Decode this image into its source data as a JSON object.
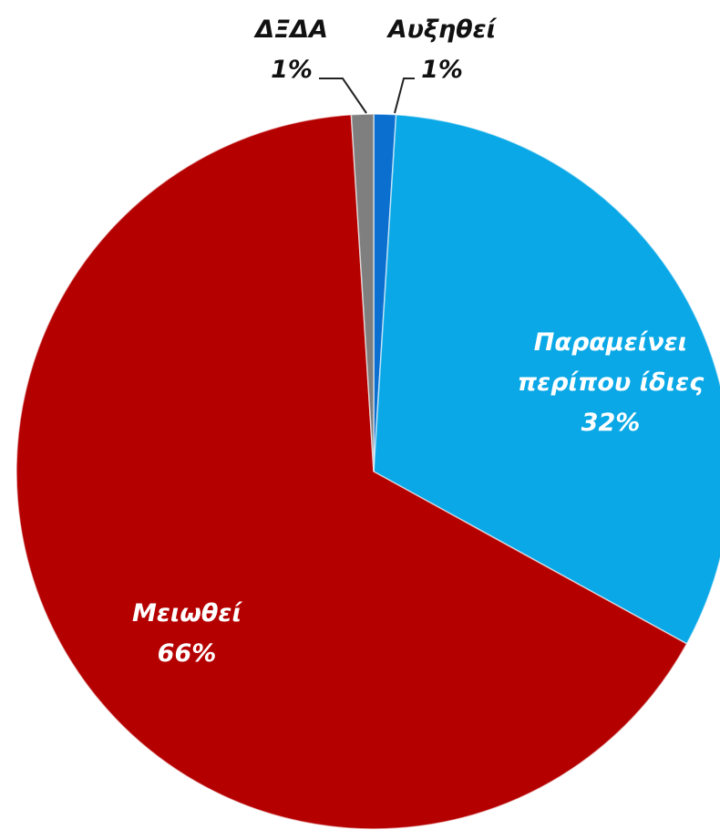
{
  "chart_data": {
    "type": "pie",
    "categories": [
      "Αυξηθεί",
      "Παραμείνει περίπου ίδιες",
      "Μειωθεί",
      "ΔΞΔΑ"
    ],
    "values": [
      1,
      32,
      66,
      1
    ],
    "value_labels": [
      "1%",
      "32%",
      "66%",
      "1%"
    ],
    "colors": [
      "#0b6fcf",
      "#0aa8e6",
      "#b50000",
      "#7f7f7f"
    ]
  }
}
